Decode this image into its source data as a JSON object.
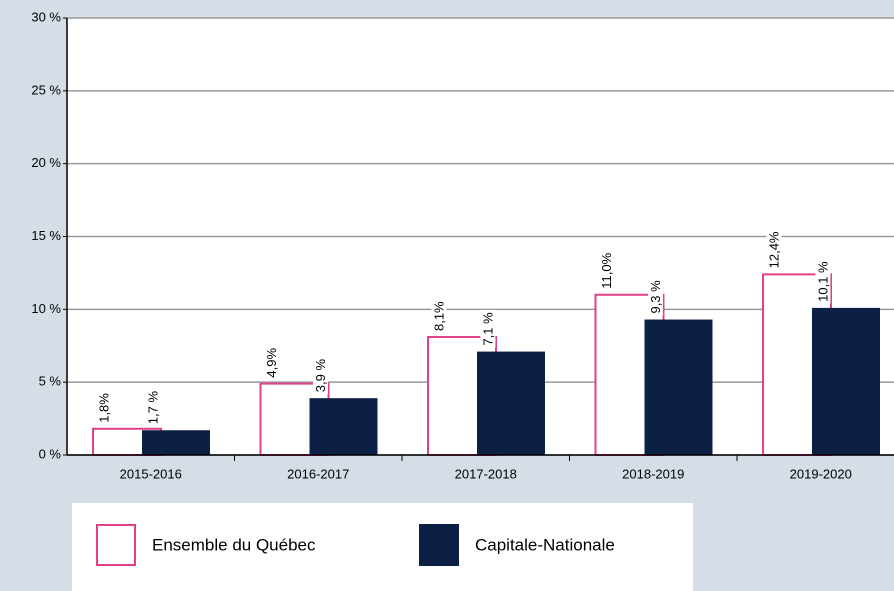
{
  "chart_data": {
    "type": "bar",
    "categories": [
      "2015-2016",
      "2016-2017",
      "2017-2018",
      "2018-2019",
      "2019-2020"
    ],
    "series": [
      {
        "name": "Ensemble du Québec",
        "color": "#e0408a",
        "values": [
          1.8,
          4.9,
          8.1,
          11.0,
          12.4
        ],
        "value_labels": [
          "1,8%",
          "4,9%",
          "8,1%",
          "11,0%",
          "12,4%"
        ]
      },
      {
        "name": "Capitale-Nationale",
        "color": "#0c1f45",
        "values": [
          1.7,
          3.9,
          7.1,
          9.3,
          10.1
        ],
        "value_labels": [
          "1,7 %",
          "3,9 %",
          "7,1 %",
          "9,3 %",
          "10,1 %"
        ]
      }
    ],
    "ylim": [
      0,
      30
    ],
    "yticks": [
      {
        "value": 0,
        "label": "0 %"
      },
      {
        "value": 5,
        "label": "5 %"
      },
      {
        "value": 10,
        "label": "10 %"
      },
      {
        "value": 15,
        "label": "15 %"
      },
      {
        "value": 20,
        "label": "20 %"
      },
      {
        "value": 25,
        "label": "25 %"
      },
      {
        "value": 30,
        "label": "30 %"
      }
    ],
    "grid": true
  }
}
